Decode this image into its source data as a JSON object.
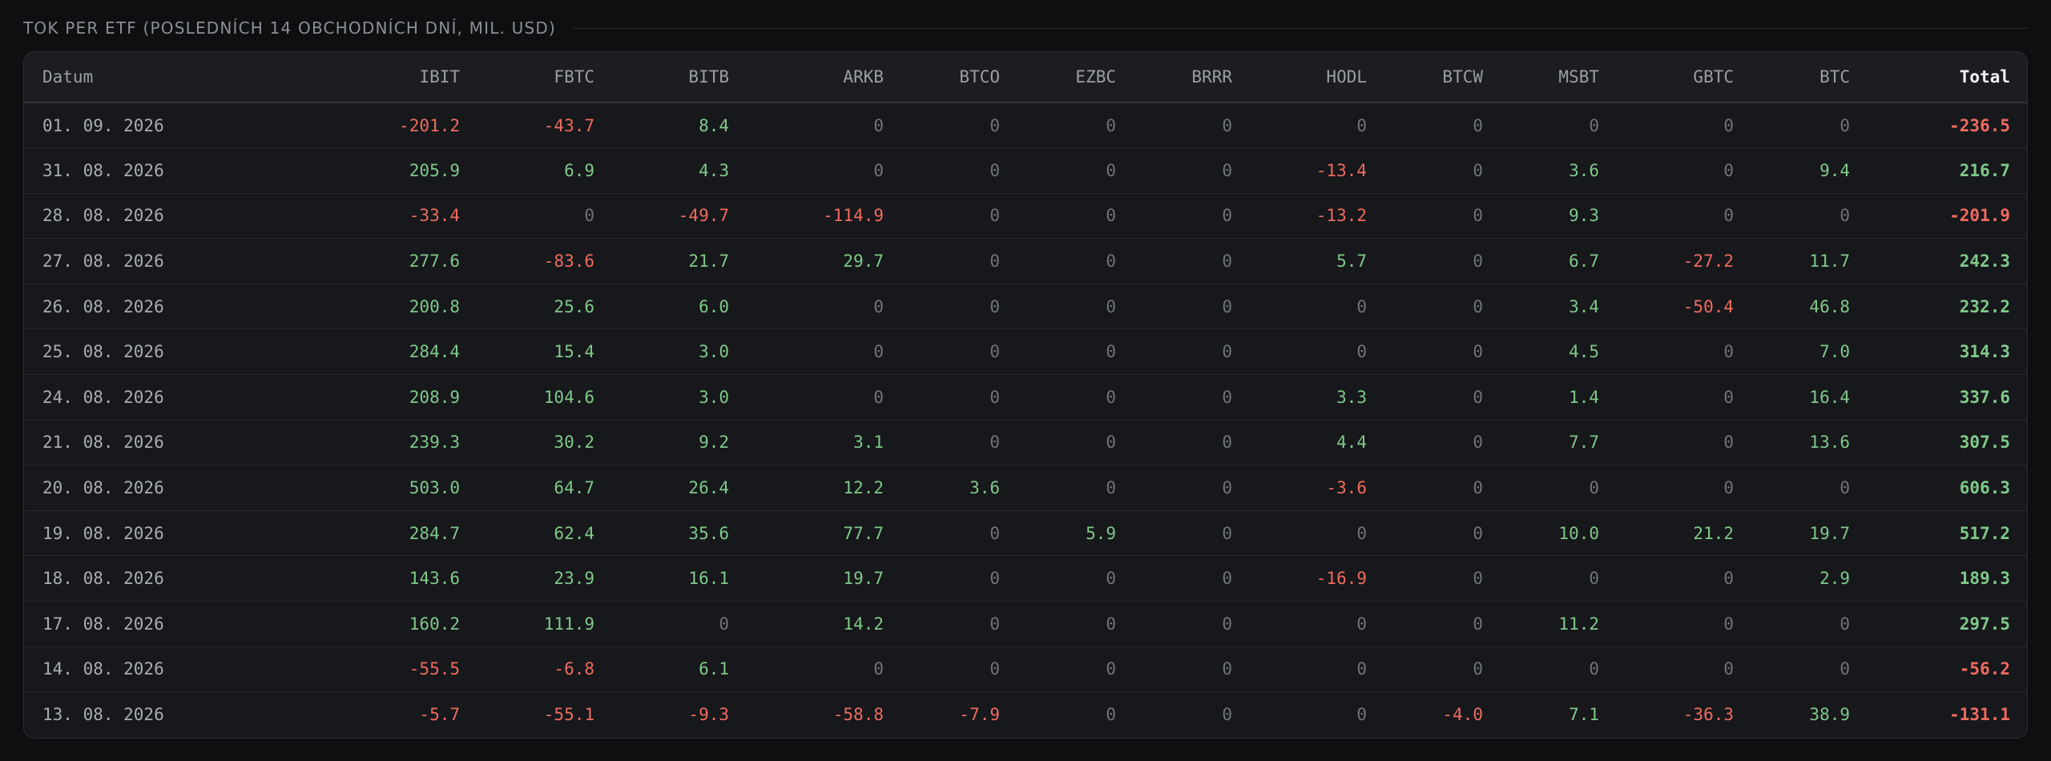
{
  "section": {
    "title": "TOK PER ETF (POSLEDNÍCH 14 OBCHODNÍCH DNÍ, MIL. USD)"
  },
  "table": {
    "columns": [
      "Datum",
      "IBIT",
      "FBTC",
      "BITB",
      "ARKB",
      "BTCO",
      "EZBC",
      "BRRR",
      "HODL",
      "BTCW",
      "MSBT",
      "GBTC",
      "BTC",
      "Total"
    ],
    "rows": [
      {
        "date": "01. 09. 2026",
        "values": [
          "-201.2",
          "-43.7",
          "8.4",
          "0",
          "0",
          "0",
          "0",
          "0",
          "0",
          "0",
          "0",
          "0"
        ],
        "total": "-236.5"
      },
      {
        "date": "31. 08. 2026",
        "values": [
          "205.9",
          "6.9",
          "4.3",
          "0",
          "0",
          "0",
          "0",
          "-13.4",
          "0",
          "3.6",
          "0",
          "9.4"
        ],
        "total": "216.7"
      },
      {
        "date": "28. 08. 2026",
        "values": [
          "-33.4",
          "0",
          "-49.7",
          "-114.9",
          "0",
          "0",
          "0",
          "-13.2",
          "0",
          "9.3",
          "0",
          "0"
        ],
        "total": "-201.9"
      },
      {
        "date": "27. 08. 2026",
        "values": [
          "277.6",
          "-83.6",
          "21.7",
          "29.7",
          "0",
          "0",
          "0",
          "5.7",
          "0",
          "6.7",
          "-27.2",
          "11.7"
        ],
        "total": "242.3"
      },
      {
        "date": "26. 08. 2026",
        "values": [
          "200.8",
          "25.6",
          "6.0",
          "0",
          "0",
          "0",
          "0",
          "0",
          "0",
          "3.4",
          "-50.4",
          "46.8"
        ],
        "total": "232.2"
      },
      {
        "date": "25. 08. 2026",
        "values": [
          "284.4",
          "15.4",
          "3.0",
          "0",
          "0",
          "0",
          "0",
          "0",
          "0",
          "4.5",
          "0",
          "7.0"
        ],
        "total": "314.3"
      },
      {
        "date": "24. 08. 2026",
        "values": [
          "208.9",
          "104.6",
          "3.0",
          "0",
          "0",
          "0",
          "0",
          "3.3",
          "0",
          "1.4",
          "0",
          "16.4"
        ],
        "total": "337.6"
      },
      {
        "date": "21. 08. 2026",
        "values": [
          "239.3",
          "30.2",
          "9.2",
          "3.1",
          "0",
          "0",
          "0",
          "4.4",
          "0",
          "7.7",
          "0",
          "13.6"
        ],
        "total": "307.5"
      },
      {
        "date": "20. 08. 2026",
        "values": [
          "503.0",
          "64.7",
          "26.4",
          "12.2",
          "3.6",
          "0",
          "0",
          "-3.6",
          "0",
          "0",
          "0",
          "0"
        ],
        "total": "606.3"
      },
      {
        "date": "19. 08. 2026",
        "values": [
          "284.7",
          "62.4",
          "35.6",
          "77.7",
          "0",
          "5.9",
          "0",
          "0",
          "0",
          "10.0",
          "21.2",
          "19.7"
        ],
        "total": "517.2"
      },
      {
        "date": "18. 08. 2026",
        "values": [
          "143.6",
          "23.9",
          "16.1",
          "19.7",
          "0",
          "0",
          "0",
          "-16.9",
          "0",
          "0",
          "0",
          "2.9"
        ],
        "total": "189.3"
      },
      {
        "date": "17. 08. 2026",
        "values": [
          "160.2",
          "111.9",
          "0",
          "14.2",
          "0",
          "0",
          "0",
          "0",
          "0",
          "11.2",
          "0",
          "0"
        ],
        "total": "297.5"
      },
      {
        "date": "14. 08. 2026",
        "values": [
          "-55.5",
          "-6.8",
          "6.1",
          "0",
          "0",
          "0",
          "0",
          "0",
          "0",
          "0",
          "0",
          "0"
        ],
        "total": "-56.2"
      },
      {
        "date": "13. 08. 2026",
        "values": [
          "-5.7",
          "-55.1",
          "-9.3",
          "-58.8",
          "-7.9",
          "0",
          "0",
          "0",
          "-4.0",
          "7.1",
          "-36.3",
          "38.9"
        ],
        "total": "-131.1"
      }
    ]
  },
  "colors": {
    "positive": "#7fc98a",
    "negative": "#ef6b60",
    "zero": "#6f737a",
    "background": "#0e0f11",
    "card": "#17181b"
  }
}
